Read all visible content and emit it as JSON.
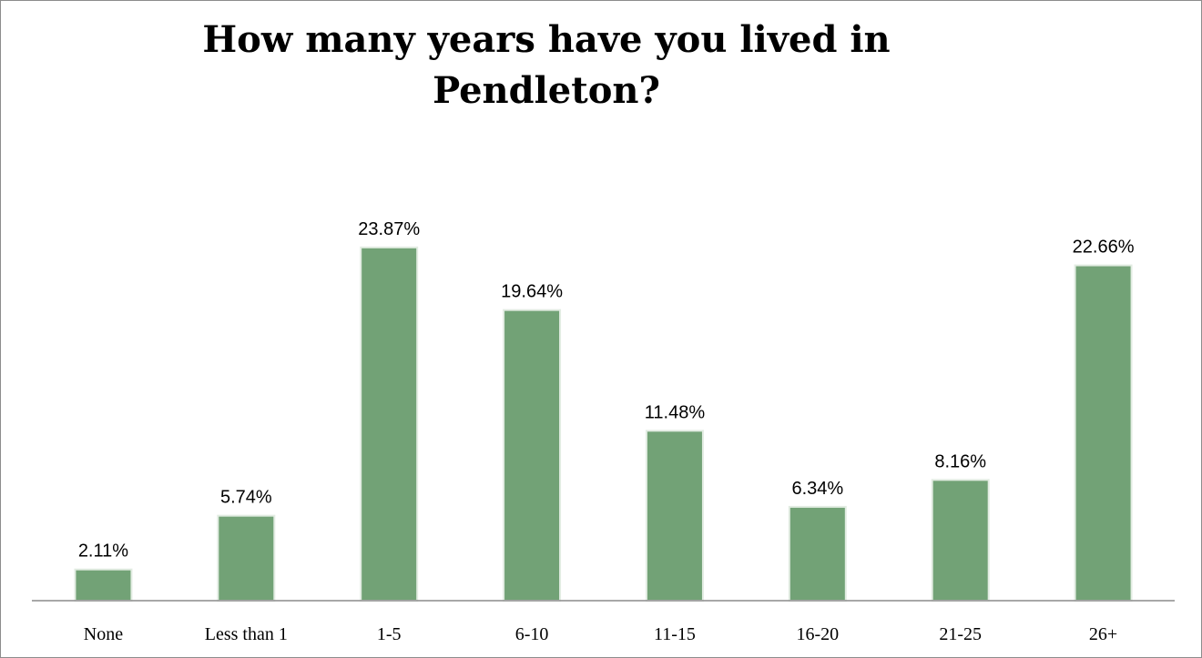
{
  "chart_data": {
    "type": "bar",
    "title": "How many years have you lived in Pendleton?",
    "categories": [
      "None",
      "Less than 1",
      "1-5",
      "6-10",
      "11-15",
      "16-20",
      "21-25",
      "26+"
    ],
    "values": [
      2.11,
      5.74,
      23.87,
      19.64,
      11.48,
      6.34,
      8.16,
      22.66
    ],
    "value_labels": [
      "2.11%",
      "5.74%",
      "23.87%",
      "19.64%",
      "11.48%",
      "6.34%",
      "8.16%",
      "22.66%"
    ],
    "color": "#72a276"
  }
}
